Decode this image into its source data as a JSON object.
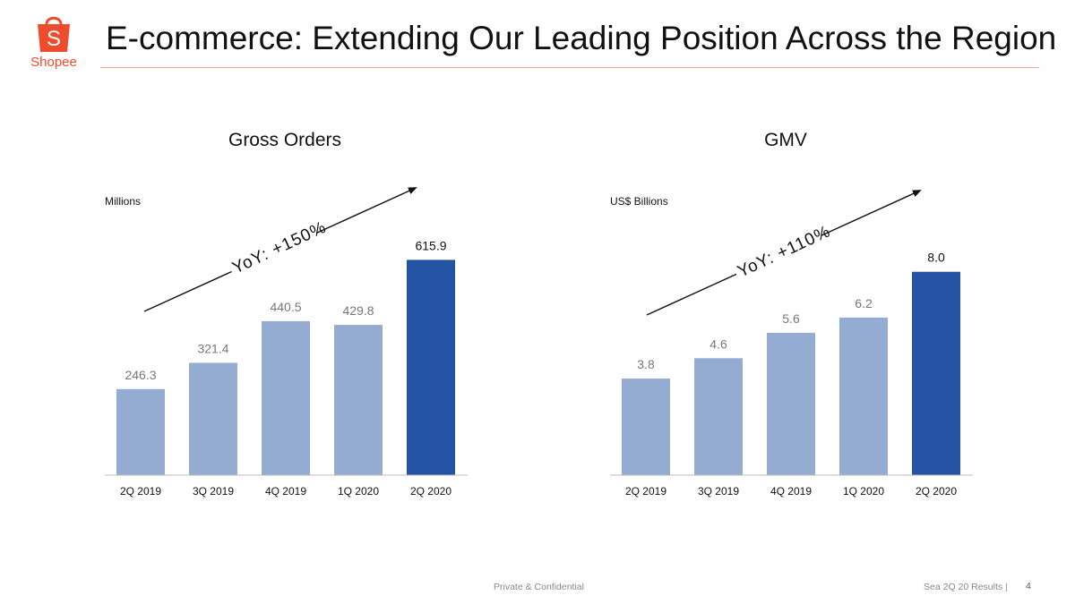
{
  "header": {
    "title": "E-commerce: Extending Our Leading Position Across the Region",
    "brand": "Shopee",
    "logo_icon": "shopping-bag-icon",
    "brand_color": "#ee4d2d",
    "rule_color": "#f2a7a0"
  },
  "colors": {
    "light_bar": "#94acd2",
    "highlight_bar": "#2553a3",
    "light_label": "#777777",
    "highlight_label": "#111111"
  },
  "chart_data": [
    {
      "type": "bar",
      "title": "Gross Orders",
      "unit_label": "Millions",
      "categories": [
        "2Q 2019",
        "3Q 2019",
        "4Q 2019",
        "1Q 2020",
        "2Q 2020"
      ],
      "values": [
        246.3,
        321.4,
        440.5,
        429.8,
        615.9
      ],
      "value_labels": [
        "246.3",
        "321.4",
        "440.5",
        "429.8",
        "615.9"
      ],
      "highlight_index": 4,
      "annotation": "YoY: +150%",
      "ylim": [
        0,
        640
      ],
      "grid": false,
      "legend": "none"
    },
    {
      "type": "bar",
      "title": "GMV",
      "unit_label": "US$ Billions",
      "categories": [
        "2Q 2019",
        "3Q 2019",
        "4Q 2019",
        "1Q 2020",
        "2Q 2020"
      ],
      "values": [
        3.8,
        4.6,
        5.6,
        6.2,
        8.0
      ],
      "value_labels": [
        "3.8",
        "4.6",
        "5.6",
        "6.2",
        "8.0"
      ],
      "highlight_index": 4,
      "annotation": "YoY: +110%",
      "ylim": [
        0,
        8.8
      ],
      "grid": false,
      "legend": "none"
    }
  ],
  "footer": {
    "center": "Private & Confidential",
    "right": "Sea 2Q 20 Results |",
    "page": "4"
  }
}
